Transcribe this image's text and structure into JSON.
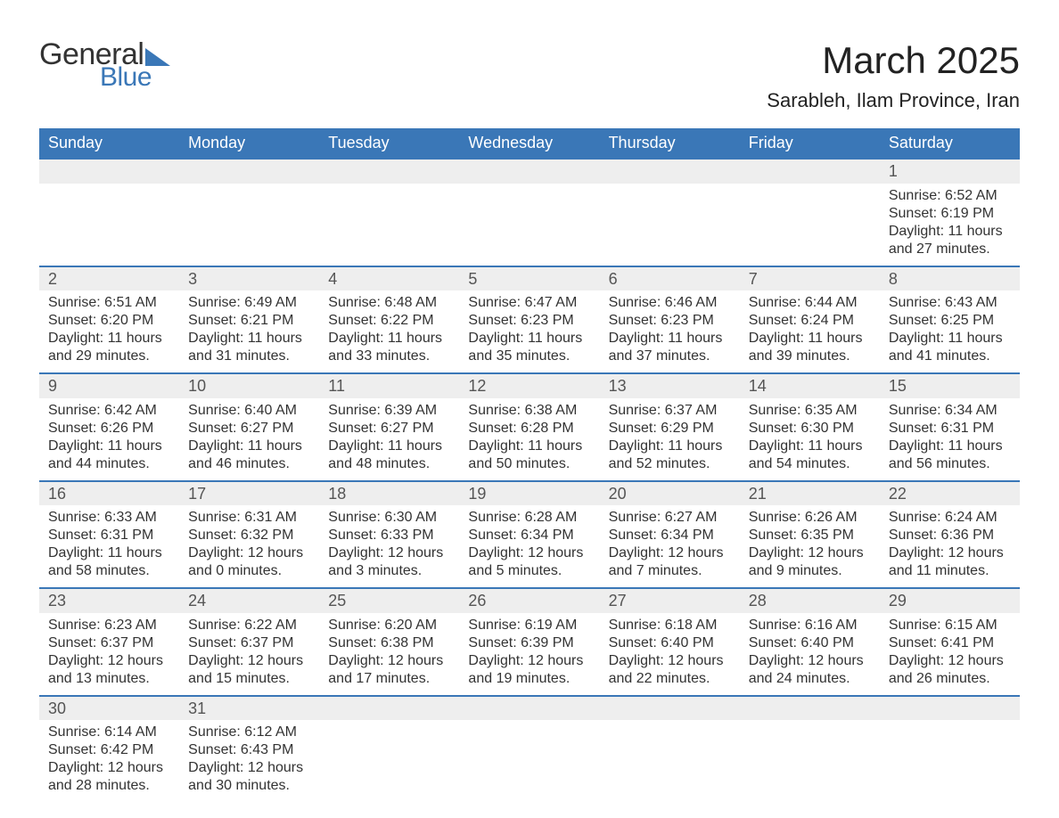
{
  "brand": {
    "word1": "General",
    "word2": "Blue",
    "accent_color": "#3a77b7"
  },
  "title": {
    "month": "March 2025",
    "location": "Sarableh, Ilam Province, Iran"
  },
  "style": {
    "header_bg": "#3a77b7",
    "header_fg": "#ffffff",
    "daynum_bg": "#eeeeee",
    "text_color": "#333333",
    "row_divider": "#3a77b7",
    "body_bg": "#ffffff",
    "month_fontsize": 42,
    "location_fontsize": 22,
    "weekday_fontsize": 18,
    "cell_fontsize": 16
  },
  "weekdays": [
    "Sunday",
    "Monday",
    "Tuesday",
    "Wednesday",
    "Thursday",
    "Friday",
    "Saturday"
  ],
  "weeks": [
    [
      null,
      null,
      null,
      null,
      null,
      null,
      {
        "n": "1",
        "sunrise": "Sunrise: 6:52 AM",
        "sunset": "Sunset: 6:19 PM",
        "daylight": "Daylight: 11 hours and 27 minutes."
      }
    ],
    [
      {
        "n": "2",
        "sunrise": "Sunrise: 6:51 AM",
        "sunset": "Sunset: 6:20 PM",
        "daylight": "Daylight: 11 hours and 29 minutes."
      },
      {
        "n": "3",
        "sunrise": "Sunrise: 6:49 AM",
        "sunset": "Sunset: 6:21 PM",
        "daylight": "Daylight: 11 hours and 31 minutes."
      },
      {
        "n": "4",
        "sunrise": "Sunrise: 6:48 AM",
        "sunset": "Sunset: 6:22 PM",
        "daylight": "Daylight: 11 hours and 33 minutes."
      },
      {
        "n": "5",
        "sunrise": "Sunrise: 6:47 AM",
        "sunset": "Sunset: 6:23 PM",
        "daylight": "Daylight: 11 hours and 35 minutes."
      },
      {
        "n": "6",
        "sunrise": "Sunrise: 6:46 AM",
        "sunset": "Sunset: 6:23 PM",
        "daylight": "Daylight: 11 hours and 37 minutes."
      },
      {
        "n": "7",
        "sunrise": "Sunrise: 6:44 AM",
        "sunset": "Sunset: 6:24 PM",
        "daylight": "Daylight: 11 hours and 39 minutes."
      },
      {
        "n": "8",
        "sunrise": "Sunrise: 6:43 AM",
        "sunset": "Sunset: 6:25 PM",
        "daylight": "Daylight: 11 hours and 41 minutes."
      }
    ],
    [
      {
        "n": "9",
        "sunrise": "Sunrise: 6:42 AM",
        "sunset": "Sunset: 6:26 PM",
        "daylight": "Daylight: 11 hours and 44 minutes."
      },
      {
        "n": "10",
        "sunrise": "Sunrise: 6:40 AM",
        "sunset": "Sunset: 6:27 PM",
        "daylight": "Daylight: 11 hours and 46 minutes."
      },
      {
        "n": "11",
        "sunrise": "Sunrise: 6:39 AM",
        "sunset": "Sunset: 6:27 PM",
        "daylight": "Daylight: 11 hours and 48 minutes."
      },
      {
        "n": "12",
        "sunrise": "Sunrise: 6:38 AM",
        "sunset": "Sunset: 6:28 PM",
        "daylight": "Daylight: 11 hours and 50 minutes."
      },
      {
        "n": "13",
        "sunrise": "Sunrise: 6:37 AM",
        "sunset": "Sunset: 6:29 PM",
        "daylight": "Daylight: 11 hours and 52 minutes."
      },
      {
        "n": "14",
        "sunrise": "Sunrise: 6:35 AM",
        "sunset": "Sunset: 6:30 PM",
        "daylight": "Daylight: 11 hours and 54 minutes."
      },
      {
        "n": "15",
        "sunrise": "Sunrise: 6:34 AM",
        "sunset": "Sunset: 6:31 PM",
        "daylight": "Daylight: 11 hours and 56 minutes."
      }
    ],
    [
      {
        "n": "16",
        "sunrise": "Sunrise: 6:33 AM",
        "sunset": "Sunset: 6:31 PM",
        "daylight": "Daylight: 11 hours and 58 minutes."
      },
      {
        "n": "17",
        "sunrise": "Sunrise: 6:31 AM",
        "sunset": "Sunset: 6:32 PM",
        "daylight": "Daylight: 12 hours and 0 minutes."
      },
      {
        "n": "18",
        "sunrise": "Sunrise: 6:30 AM",
        "sunset": "Sunset: 6:33 PM",
        "daylight": "Daylight: 12 hours and 3 minutes."
      },
      {
        "n": "19",
        "sunrise": "Sunrise: 6:28 AM",
        "sunset": "Sunset: 6:34 PM",
        "daylight": "Daylight: 12 hours and 5 minutes."
      },
      {
        "n": "20",
        "sunrise": "Sunrise: 6:27 AM",
        "sunset": "Sunset: 6:34 PM",
        "daylight": "Daylight: 12 hours and 7 minutes."
      },
      {
        "n": "21",
        "sunrise": "Sunrise: 6:26 AM",
        "sunset": "Sunset: 6:35 PM",
        "daylight": "Daylight: 12 hours and 9 minutes."
      },
      {
        "n": "22",
        "sunrise": "Sunrise: 6:24 AM",
        "sunset": "Sunset: 6:36 PM",
        "daylight": "Daylight: 12 hours and 11 minutes."
      }
    ],
    [
      {
        "n": "23",
        "sunrise": "Sunrise: 6:23 AM",
        "sunset": "Sunset: 6:37 PM",
        "daylight": "Daylight: 12 hours and 13 minutes."
      },
      {
        "n": "24",
        "sunrise": "Sunrise: 6:22 AM",
        "sunset": "Sunset: 6:37 PM",
        "daylight": "Daylight: 12 hours and 15 minutes."
      },
      {
        "n": "25",
        "sunrise": "Sunrise: 6:20 AM",
        "sunset": "Sunset: 6:38 PM",
        "daylight": "Daylight: 12 hours and 17 minutes."
      },
      {
        "n": "26",
        "sunrise": "Sunrise: 6:19 AM",
        "sunset": "Sunset: 6:39 PM",
        "daylight": "Daylight: 12 hours and 19 minutes."
      },
      {
        "n": "27",
        "sunrise": "Sunrise: 6:18 AM",
        "sunset": "Sunset: 6:40 PM",
        "daylight": "Daylight: 12 hours and 22 minutes."
      },
      {
        "n": "28",
        "sunrise": "Sunrise: 6:16 AM",
        "sunset": "Sunset: 6:40 PM",
        "daylight": "Daylight: 12 hours and 24 minutes."
      },
      {
        "n": "29",
        "sunrise": "Sunrise: 6:15 AM",
        "sunset": "Sunset: 6:41 PM",
        "daylight": "Daylight: 12 hours and 26 minutes."
      }
    ],
    [
      {
        "n": "30",
        "sunrise": "Sunrise: 6:14 AM",
        "sunset": "Sunset: 6:42 PM",
        "daylight": "Daylight: 12 hours and 28 minutes."
      },
      {
        "n": "31",
        "sunrise": "Sunrise: 6:12 AM",
        "sunset": "Sunset: 6:43 PM",
        "daylight": "Daylight: 12 hours and 30 minutes."
      },
      null,
      null,
      null,
      null,
      null
    ]
  ]
}
